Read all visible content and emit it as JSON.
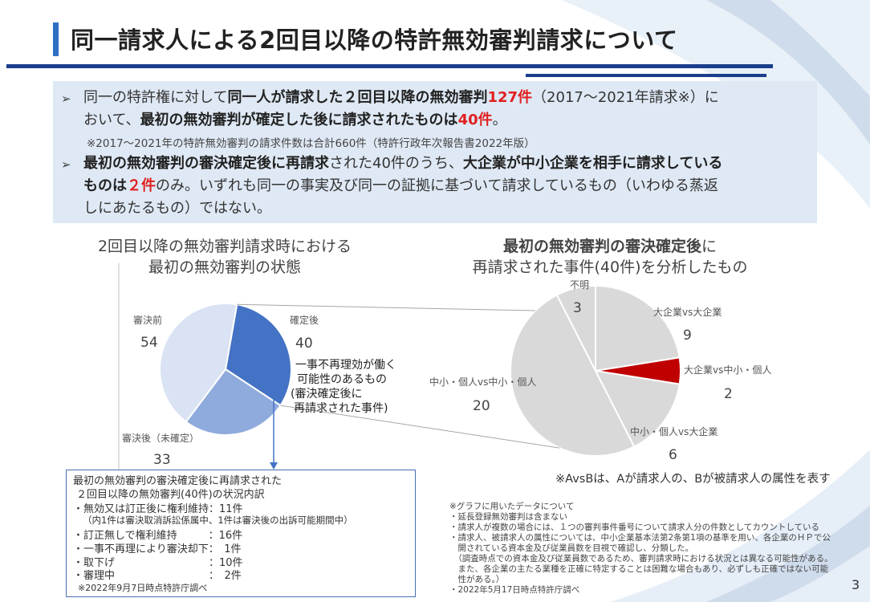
{
  "header": {
    "title": "同一請求人による2回目以降の特許無効審判請求について"
  },
  "bullets": {
    "b1_line1_pre": "同一の特許権に対して",
    "b1_line1_bold": "同一人が請求した２回目以降の無効審判",
    "b1_line1_red": "127件",
    "b1_line1_post": "（2017～2021年請求※）に",
    "b1_line2_pre": "おいて、",
    "b1_line2_bold": "最初の無効審判が確定した後に請求されたものは",
    "b1_line2_red": "40件",
    "b1_line2_post": "。",
    "b1_note": "※2017～2021年の特許無効審判の請求件数は合計660件（特許行政年次報告書2022年版）",
    "b2_line1_bold1": "最初の無効審判の審決確定後に再請求",
    "b2_line1_mid": "された40件のうち、",
    "b2_line1_bold2": "大企業が中小企業を相手に請求している",
    "b2_line2_bold": "ものは",
    "b2_line2_red": "２件",
    "b2_line2_post": "のみ。いずれも同一の事実及び同一の証拠に基づいて請求しているもの（いわゆる蒸返",
    "b2_line3": "しにあたるもの）ではない。"
  },
  "left_chart": {
    "title_line1": "2回目以降の無効審判請求時における",
    "title_line2": "最初の無効審判の状態",
    "callout_lines": [
      "一事不再理効が働く",
      "可能性のあるもの",
      "(審決確定後に",
      "再請求された事件)"
    ]
  },
  "right_chart": {
    "title_bold": "最初の無効審判の審決確定後",
    "title_rest": "に",
    "title_line2": "再請求された事件(40件)を分析したもの",
    "footnote": "※AvsBは、Aが請求人の、Bが被請求人の属性を表す"
  },
  "chart_data": [
    {
      "type": "pie",
      "title": "2回目以降の無効審判請求時における最初の無効審判の状態",
      "slices": [
        {
          "label": "確定後",
          "value": 40,
          "color": "#4472c4"
        },
        {
          "label": "審決後（未確定）",
          "value": 33,
          "color": "#8faadc"
        },
        {
          "label": "審決前",
          "value": 54,
          "color": "#dae3f3"
        }
      ]
    },
    {
      "type": "pie",
      "title": "最初の無効審判の審決確定後に再請求された事件(40件)を分析したもの",
      "slices": [
        {
          "label": "大企業vs大企業",
          "value": 9,
          "color": "#d9d9d9"
        },
        {
          "label": "大企業vs中小・個人",
          "value": 2,
          "color": "#c00000"
        },
        {
          "label": "中小・個人vs大企業",
          "value": 6,
          "color": "#d9d9d9"
        },
        {
          "label": "中小・個人vs中小・個人",
          "value": 20,
          "color": "#d9d9d9"
        },
        {
          "label": "不明",
          "value": 3,
          "color": "#d9d9d9"
        }
      ]
    }
  ],
  "breakdown_box": {
    "title1": "最初の無効審判の審決確定後に再請求された",
    "title2": "２回目以降の無効審判(40件)の状況内訳",
    "r1": "・無効又は訂正後に権利維持：11件",
    "r1_sub": "（内1件は審決取消訴訟係属中、1件は審決後の出訴可能期間中）",
    "r2": "・訂正無しで権利維持　　　：16件",
    "r3": "・一事不再理により審決却下：　1件",
    "r4": "・取下げ　　　　　　　　　：10件",
    "r5": "・審理中　　　　　　　　　：　2件",
    "note": "※2022年9月7日時点特許庁調べ"
  },
  "data_notes": {
    "heading": "※グラフに用いたデータについて",
    "lines": [
      "・延長登録無効審判は含まない",
      "・請求人が複数の場合には、１つの審判事件番号について請求人分の件数としてカウントしている",
      "・請求人、被請求人の属性については、中小企業基本法第2条第1項の基準を用い、各企業のＨＰで公",
      "　開されている資本金及び従業員数を目視で確認し、分類した。",
      "　（調査時点での資本金及び従業員数であるため、審判請求時における状況とは異なる可能性がある。",
      "　また、各企業の主たる業種を正確に特定することは困難な場合もあり、必ずしも正確ではない可能",
      "　性がある。）",
      "・2022年5月17日時点特許庁調べ"
    ]
  },
  "page": {
    "number": "3"
  }
}
